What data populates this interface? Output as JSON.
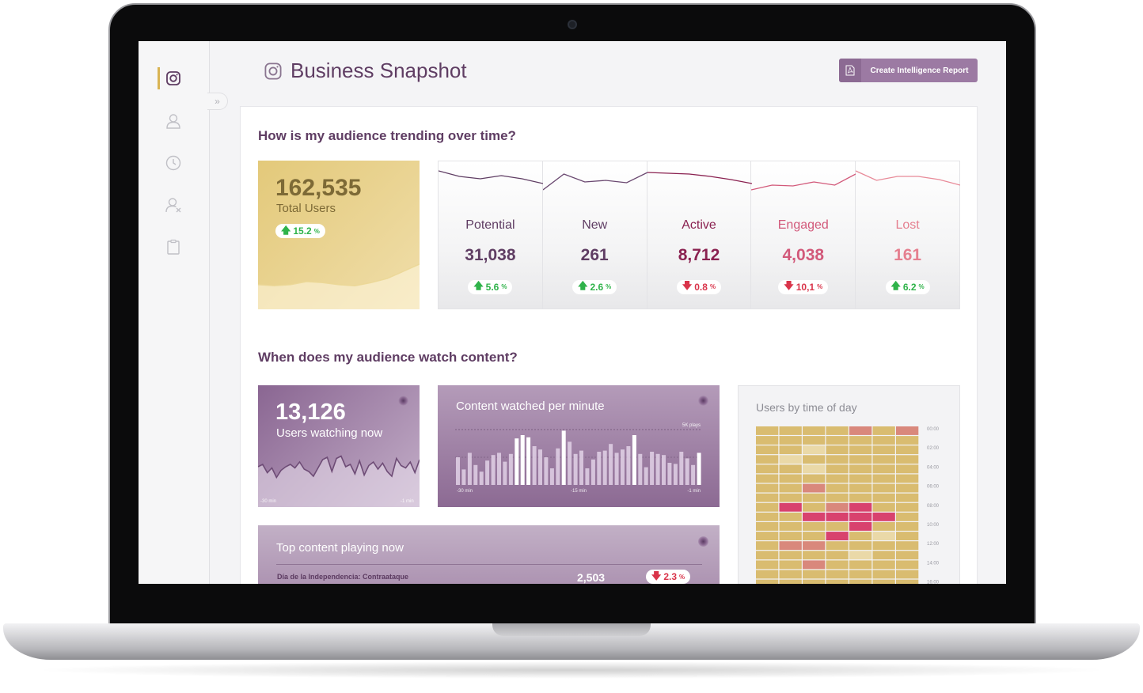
{
  "page": {
    "title": "Business Snapshot",
    "report_button": "Create Intelligence Report"
  },
  "sidebar": {
    "items": [
      {
        "icon": "instagram-icon",
        "active": true
      },
      {
        "icon": "users-icon",
        "active": false
      },
      {
        "icon": "clock-icon",
        "active": false
      },
      {
        "icon": "user-remove-icon",
        "active": false
      },
      {
        "icon": "clipboard-icon",
        "active": false
      }
    ],
    "expand_glyph": "»"
  },
  "trend": {
    "title": "How is my audience trending over time?",
    "total": {
      "value": "162,535",
      "label": "Total Users",
      "change": "15.2",
      "unit": "%",
      "direction": "up"
    },
    "metrics": [
      {
        "label": "Potential",
        "value": "31,038",
        "change": "5.6",
        "unit": "%",
        "direction": "up",
        "color": "#5f3d63",
        "line_color": "#5f3d63"
      },
      {
        "label": "New",
        "value": "261",
        "change": "2.6",
        "unit": "%",
        "direction": "up",
        "color": "#5f3d63",
        "line_color": "#6a4870"
      },
      {
        "label": "Active",
        "value": "8,712",
        "change": "0.8",
        "unit": "%",
        "direction": "down",
        "color": "#8a2150",
        "line_color": "#8a2150"
      },
      {
        "label": "Engaged",
        "value": "4,038",
        "change": "10,1",
        "unit": "%",
        "direction": "down",
        "color": "#d2597a",
        "line_color": "#d2597a"
      },
      {
        "label": "Lost",
        "value": "161",
        "change": "6.2",
        "unit": "%",
        "direction": "up",
        "color": "#e57f8f",
        "line_color": "#e88a98"
      }
    ]
  },
  "watch": {
    "title": "When does my audience watch content?",
    "now": {
      "value": "13,126",
      "label": "Users watching now",
      "axis_start": "-30 min",
      "axis_end": "-1 min"
    },
    "per_minute": {
      "title": "Content watched per minute",
      "max_label": "5K plays",
      "axis_labels": [
        "-30 min",
        "-15 min",
        "-1 min"
      ]
    },
    "top_content": {
      "title": "Top content playing now",
      "rows": [
        {
          "title": "Día de la Independencia: Contraataque",
          "plays": "2,503",
          "change": "2.3",
          "unit": "%",
          "direction": "down"
        }
      ]
    },
    "heatmap": {
      "title": "Users by time of day",
      "hour_labels": [
        "00:00",
        "02:00",
        "04:00",
        "06:00",
        "08:00",
        "10:00",
        "12:00",
        "14:00",
        "16:00"
      ],
      "colors": {
        "low": "#ead9a8",
        "mid": "#d9bc70",
        "high": "#d9887c",
        "peak": "#d8426e"
      }
    }
  },
  "chart_data": [
    {
      "type": "line",
      "series": [
        {
          "values": [
            12,
            11,
            12,
            15,
            14,
            12,
            11,
            14,
            18,
            25,
            32
          ]
        }
      ]
    },
    {
      "type": "line",
      "series": [
        {
          "values": [
            10,
            17,
            20,
            16,
            20,
            26
          ]
        },
        {
          "values": [
            34,
            14,
            24,
            22,
            25,
            12
          ]
        },
        {
          "values": [
            12,
            13,
            14,
            17,
            21,
            26
          ]
        },
        {
          "values": [
            34,
            28,
            29,
            24,
            28,
            14
          ]
        },
        {
          "values": [
            10,
            22,
            17,
            17,
            21,
            28
          ]
        }
      ]
    },
    {
      "type": "line",
      "series": [
        {
          "values": [
            20,
            22,
            15,
            19,
            11,
            17,
            20,
            22,
            19,
            24,
            18,
            16,
            12,
            19,
            26,
            28,
            16,
            27,
            29,
            20,
            22,
            14,
            25,
            13,
            21,
            24,
            18,
            23,
            16,
            12,
            27,
            21,
            19,
            24,
            15,
            26
          ]
        }
      ]
    },
    {
      "type": "bar",
      "ylim": [
        0,
        5000
      ],
      "values": [
        2500,
        1400,
        2900,
        1800,
        1200,
        2200,
        2700,
        2900,
        2100,
        2800,
        4200,
        4500,
        4300,
        3500,
        3200,
        2500,
        1500,
        3300,
        4900,
        3900,
        2800,
        3100,
        1500,
        2300,
        3000,
        3100,
        3700,
        2900,
        3200,
        3500,
        4500,
        2800,
        1600,
        3000,
        2800,
        2700,
        2000,
        1900,
        3000,
        2400,
        1800,
        2900
      ]
    },
    {
      "type": "heatmap",
      "rows": 17,
      "cols": 7,
      "values": [
        [
          1,
          1,
          1,
          1,
          2,
          1,
          2
        ],
        [
          1,
          1,
          1,
          1,
          1,
          1,
          1
        ],
        [
          1,
          1,
          0,
          1,
          1,
          1,
          1
        ],
        [
          1,
          0,
          1,
          1,
          1,
          1,
          1
        ],
        [
          1,
          1,
          0,
          1,
          1,
          1,
          1
        ],
        [
          1,
          1,
          1,
          1,
          1,
          1,
          1
        ],
        [
          1,
          1,
          2,
          1,
          1,
          1,
          1
        ],
        [
          1,
          1,
          1,
          1,
          1,
          1,
          1
        ],
        [
          1,
          3,
          1,
          2,
          3,
          1,
          1
        ],
        [
          1,
          1,
          3,
          3,
          3,
          3,
          1
        ],
        [
          1,
          1,
          1,
          1,
          3,
          1,
          1
        ],
        [
          1,
          1,
          1,
          3,
          1,
          0,
          1
        ],
        [
          1,
          2,
          2,
          1,
          1,
          1,
          1
        ],
        [
          1,
          1,
          1,
          1,
          0,
          1,
          1
        ],
        [
          1,
          1,
          2,
          1,
          1,
          1,
          1
        ],
        [
          1,
          1,
          1,
          1,
          1,
          1,
          1
        ],
        [
          1,
          1,
          1,
          1,
          1,
          1,
          1
        ]
      ]
    }
  ]
}
